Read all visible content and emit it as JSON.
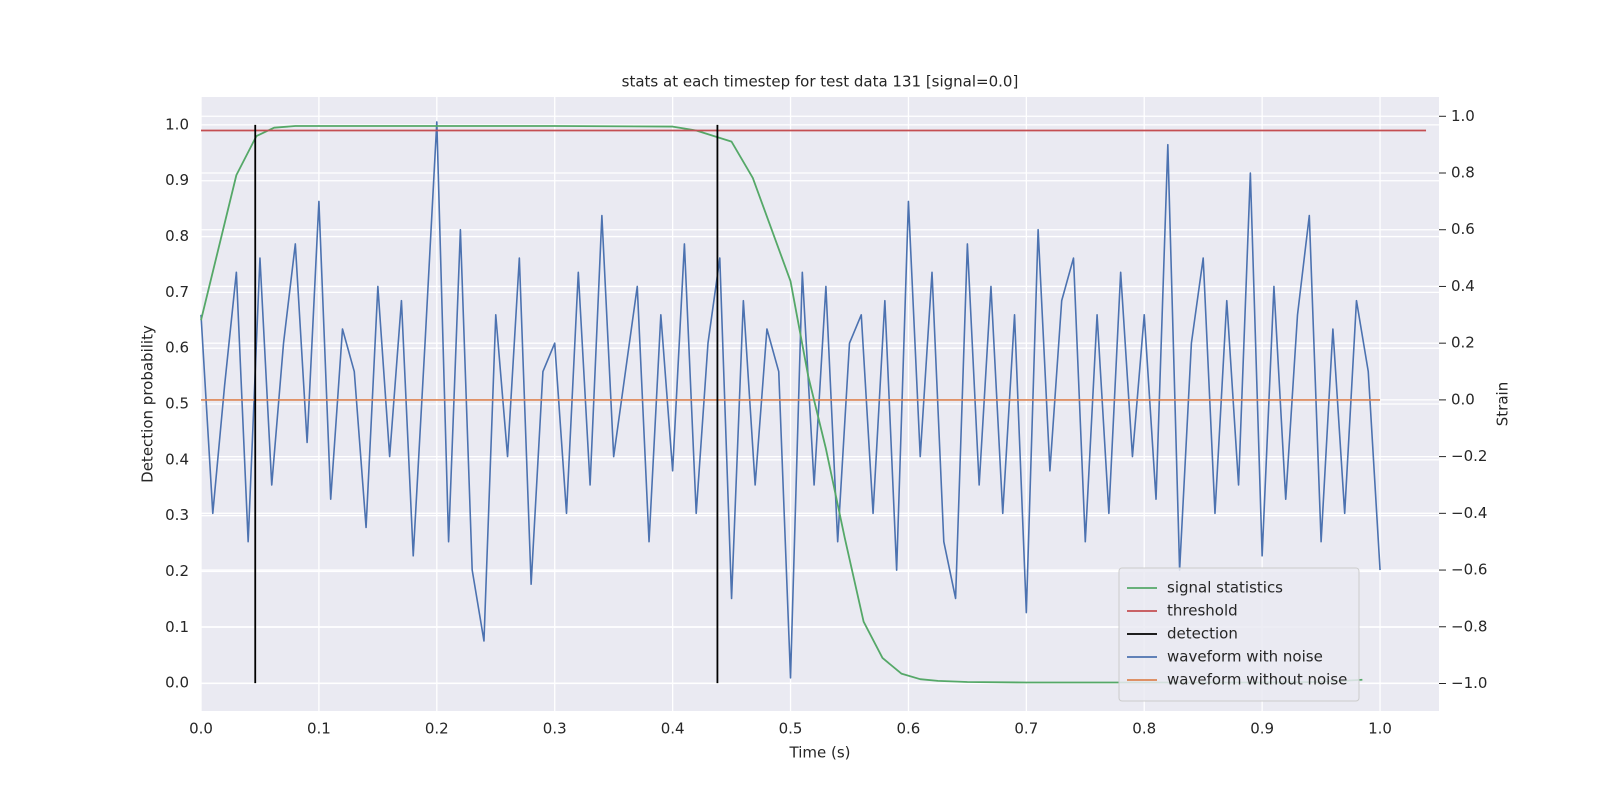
{
  "chart_data": {
    "type": "line",
    "title": "stats at each timestep for test data 131 [signal=0.0]",
    "x_label": "Time (s)",
    "y_label": "Detection probability",
    "y2_label": "Strain",
    "xlim": [
      0,
      1.05
    ],
    "ylim": [
      -0.05,
      1.05
    ],
    "y2lim": [
      -1.097,
      1.068
    ],
    "xticks": [
      {
        "value": 0,
        "label": "0.0"
      },
      0.1,
      0.2,
      0.3,
      0.4,
      0.5,
      0.6,
      0.7,
      0.8,
      0.9,
      {
        "value": 1,
        "label": "1.0"
      }
    ],
    "yticks": [
      {
        "value": 0,
        "label": "0.0"
      },
      0.1,
      0.2,
      0.3,
      0.4,
      0.5,
      0.6,
      0.7,
      0.8,
      0.9,
      {
        "value": 1,
        "label": "1.0"
      }
    ],
    "y2ticks": [
      {
        "value": -1,
        "label": "−1.0"
      },
      {
        "value": -0.8,
        "label": "−0.8"
      },
      {
        "value": -0.6,
        "label": "−0.6"
      },
      {
        "value": -0.4,
        "label": "−0.4"
      },
      {
        "value": -0.2,
        "label": "−0.2"
      },
      {
        "value": 0,
        "label": "0.0"
      },
      0.2,
      0.4,
      0.6,
      0.8,
      {
        "value": 1,
        "label": "1.0"
      }
    ],
    "grid": true,
    "legend": "lower right",
    "series": [
      {
        "name": "signal statistics",
        "color": "#55a868",
        "x": [
          0,
          0.03,
          0.047,
          0.062,
          0.08,
          0.1,
          0.2,
          0.3,
          0.4,
          0.42,
          0.45,
          0.468,
          0.5,
          0.515,
          0.53,
          0.546,
          0.562,
          0.578,
          0.594,
          0.61,
          0.625,
          0.65,
          0.7,
          0.8,
          0.9,
          0.95,
          0.985
        ],
        "values": [
          0.65,
          0.91,
          0.98,
          0.995,
          0.998,
          0.998,
          0.998,
          0.998,
          0.997,
          0.99,
          0.97,
          0.905,
          0.72,
          0.55,
          0.42,
          0.26,
          0.11,
          0.045,
          0.017,
          0.007,
          0.004,
          0.002,
          0.001,
          0.001,
          0.001,
          0.002,
          0.006
        ]
      },
      {
        "name": "threshold",
        "color": "#c44e52",
        "x": [
          0,
          1.039
        ],
        "values": [
          0.99,
          0.99
        ]
      },
      {
        "name": "detection",
        "color": "#000000",
        "x": [
          0.046,
          0.046,
          null,
          0.438,
          0.438
        ],
        "values": [
          0,
          1,
          null,
          0,
          1
        ]
      },
      {
        "name": "waveform with noise",
        "color": "#4c72b0",
        "axis": "y2",
        "x": [
          0,
          0.01,
          0.02,
          0.03,
          0.04,
          0.05,
          0.06,
          0.07,
          0.08,
          0.09,
          0.1,
          0.11,
          0.12,
          0.13,
          0.14,
          0.15,
          0.16,
          0.17,
          0.18,
          0.19,
          0.2,
          0.21,
          0.22,
          0.23,
          0.24,
          0.25,
          0.26,
          0.27,
          0.28,
          0.29,
          0.3,
          0.31,
          0.32,
          0.33,
          0.34,
          0.35,
          0.36,
          0.37,
          0.38,
          0.39,
          0.4,
          0.41,
          0.42,
          0.43,
          0.44,
          0.45,
          0.46,
          0.47,
          0.48,
          0.49,
          0.5,
          0.51,
          0.52,
          0.53,
          0.54,
          0.55,
          0.56,
          0.57,
          0.58,
          0.59,
          0.6,
          0.61,
          0.62,
          0.63,
          0.64,
          0.65,
          0.66,
          0.67,
          0.68,
          0.69,
          0.7,
          0.71,
          0.72,
          0.73,
          0.74,
          0.75,
          0.76,
          0.77,
          0.78,
          0.79,
          0.8,
          0.81,
          0.82,
          0.83,
          0.84,
          0.85,
          0.86,
          0.87,
          0.88,
          0.89,
          0.9,
          0.91,
          0.92,
          0.93,
          0.94,
          0.95,
          0.96,
          0.97,
          0.98,
          0.99,
          1
        ],
        "values": [
          0.3,
          -0.4,
          0.05,
          0.45,
          -0.5,
          0.5,
          -0.3,
          0.2,
          0.55,
          -0.15,
          0.7,
          -0.35,
          0.25,
          0.1,
          -0.45,
          0.4,
          -0.2,
          0.35,
          -0.55,
          0.2,
          0.98,
          -0.5,
          0.6,
          -0.6,
          -0.85,
          0.3,
          -0.2,
          0.5,
          -0.65,
          0.1,
          0.2,
          -0.4,
          0.45,
          -0.3,
          0.65,
          -0.2,
          0.1,
          0.4,
          -0.5,
          0.3,
          -0.25,
          0.55,
          -0.4,
          0.2,
          0.5,
          -0.7,
          0.35,
          -0.3,
          0.25,
          0.1,
          -0.98,
          0.45,
          -0.3,
          0.4,
          -0.5,
          0.2,
          0.3,
          -0.4,
          0.35,
          -0.6,
          0.7,
          -0.2,
          0.45,
          -0.5,
          -0.7,
          0.55,
          -0.3,
          0.4,
          -0.4,
          0.3,
          -0.75,
          0.6,
          -0.25,
          0.35,
          0.5,
          -0.5,
          0.3,
          -0.4,
          0.45,
          -0.2,
          0.3,
          -0.35,
          0.9,
          -0.6,
          0.2,
          0.5,
          -0.4,
          0.35,
          -0.3,
          0.8,
          -0.55,
          0.4,
          -0.35,
          0.3,
          0.65,
          -0.5,
          0.25,
          -0.4,
          0.35,
          0.1,
          -0.6
        ]
      },
      {
        "name": "waveform without noise",
        "color": "#dd8452",
        "axis": "y2",
        "x": [
          0,
          1
        ],
        "values": [
          0,
          0
        ]
      }
    ]
  }
}
